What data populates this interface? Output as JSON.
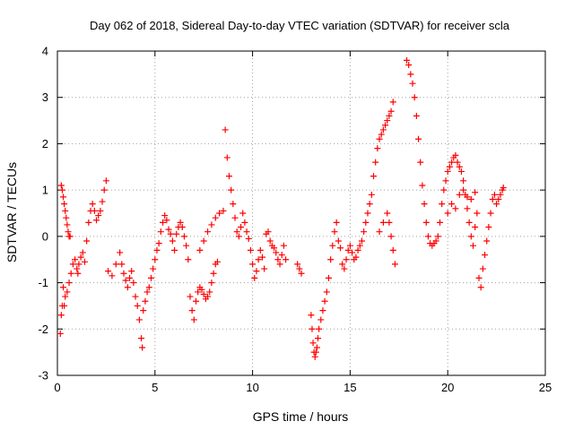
{
  "chart_data": {
    "type": "scatter",
    "title": "Day 062 of 2018, Sidereal Day-to-day VTEC variation (SDTVAR) for receiver scla",
    "xlabel": "GPS time / hours",
    "ylabel": "SDTVAR / TECUs",
    "xlim": [
      0,
      25
    ],
    "ylim": [
      -3,
      4
    ],
    "xticks": [
      "0",
      "5",
      "10",
      "15",
      "20",
      "25"
    ],
    "yticks": [
      "-3",
      "-2",
      "-1",
      "0",
      "1",
      "2",
      "3",
      "4"
    ],
    "grid": true,
    "marker": "+",
    "color": "#ff0000",
    "series": [
      {
        "name": "SDTVAR",
        "points": [
          [
            0.15,
            -2.1
          ],
          [
            0.2,
            -1.7
          ],
          [
            0.25,
            -1.5
          ],
          [
            0.3,
            -1.1
          ],
          [
            0.2,
            1.1
          ],
          [
            0.25,
            1.0
          ],
          [
            0.3,
            0.85
          ],
          [
            0.35,
            0.7
          ],
          [
            0.4,
            0.55
          ],
          [
            0.45,
            0.4
          ],
          [
            0.5,
            0.25
          ],
          [
            0.55,
            0.1
          ],
          [
            0.6,
            0.0
          ],
          [
            0.65,
            0.0
          ],
          [
            0.35,
            -1.5
          ],
          [
            0.4,
            -1.3
          ],
          [
            0.5,
            -1.2
          ],
          [
            0.6,
            -1.0
          ],
          [
            0.7,
            -0.8
          ],
          [
            0.8,
            -0.6
          ],
          [
            0.9,
            -0.5
          ],
          [
            1.0,
            -0.7
          ],
          [
            1.05,
            -0.8
          ],
          [
            1.1,
            -0.6
          ],
          [
            1.2,
            -0.45
          ],
          [
            1.3,
            -0.35
          ],
          [
            1.4,
            -0.55
          ],
          [
            1.5,
            -0.1
          ],
          [
            1.6,
            0.3
          ],
          [
            1.7,
            0.55
          ],
          [
            1.8,
            0.7
          ],
          [
            1.9,
            0.55
          ],
          [
            2.0,
            0.35
          ],
          [
            2.1,
            0.45
          ],
          [
            2.2,
            0.55
          ],
          [
            2.3,
            0.75
          ],
          [
            2.4,
            1.0
          ],
          [
            2.5,
            1.2
          ],
          [
            2.6,
            -0.75
          ],
          [
            2.8,
            -0.85
          ],
          [
            3.0,
            -0.6
          ],
          [
            3.2,
            -0.35
          ],
          [
            3.3,
            -0.6
          ],
          [
            3.4,
            -0.8
          ],
          [
            3.5,
            -0.95
          ],
          [
            3.6,
            -1.1
          ],
          [
            3.7,
            -0.9
          ],
          [
            3.8,
            -0.75
          ],
          [
            3.9,
            -1.0
          ],
          [
            4.0,
            -1.3
          ],
          [
            4.1,
            -1.5
          ],
          [
            4.2,
            -1.8
          ],
          [
            4.3,
            -2.2
          ],
          [
            4.35,
            -2.4
          ],
          [
            4.4,
            -1.6
          ],
          [
            4.5,
            -1.4
          ],
          [
            4.6,
            -1.2
          ],
          [
            4.7,
            -1.1
          ],
          [
            4.8,
            -0.9
          ],
          [
            4.9,
            -0.7
          ],
          [
            5.0,
            -0.5
          ],
          [
            5.1,
            -0.3
          ],
          [
            5.2,
            -0.15
          ],
          [
            5.3,
            0.1
          ],
          [
            5.4,
            0.3
          ],
          [
            5.5,
            0.45
          ],
          [
            5.6,
            0.35
          ],
          [
            5.7,
            0.15
          ],
          [
            5.8,
            0.05
          ],
          [
            5.9,
            -0.1
          ],
          [
            6.0,
            -0.3
          ],
          [
            6.1,
            0.05
          ],
          [
            6.2,
            0.2
          ],
          [
            6.3,
            0.3
          ],
          [
            6.4,
            0.2
          ],
          [
            6.5,
            0.0
          ],
          [
            6.6,
            -0.2
          ],
          [
            6.7,
            -0.5
          ],
          [
            6.8,
            -1.3
          ],
          [
            6.9,
            -1.6
          ],
          [
            7.0,
            -1.8
          ],
          [
            7.1,
            -1.4
          ],
          [
            7.2,
            -1.2
          ],
          [
            7.3,
            -1.1
          ],
          [
            7.4,
            -1.15
          ],
          [
            7.5,
            -1.25
          ],
          [
            7.6,
            -1.35
          ],
          [
            7.7,
            -1.3
          ],
          [
            7.8,
            -1.2
          ],
          [
            7.9,
            -1.0
          ],
          [
            8.0,
            -0.8
          ],
          [
            8.1,
            -0.6
          ],
          [
            8.2,
            -0.55
          ],
          [
            7.3,
            -0.3
          ],
          [
            7.5,
            -0.1
          ],
          [
            7.7,
            0.1
          ],
          [
            7.9,
            0.25
          ],
          [
            8.1,
            0.4
          ],
          [
            8.3,
            0.5
          ],
          [
            8.5,
            0.55
          ],
          [
            8.6,
            2.3
          ],
          [
            8.7,
            1.7
          ],
          [
            8.8,
            1.3
          ],
          [
            8.9,
            1.0
          ],
          [
            9.0,
            0.7
          ],
          [
            9.1,
            0.4
          ],
          [
            9.2,
            0.1
          ],
          [
            9.3,
            0.0
          ],
          [
            9.4,
            0.2
          ],
          [
            9.5,
            0.5
          ],
          [
            9.6,
            0.3
          ],
          [
            9.7,
            0.1
          ],
          [
            9.8,
            -0.05
          ],
          [
            9.9,
            -0.3
          ],
          [
            10.0,
            -0.6
          ],
          [
            10.1,
            -0.9
          ],
          [
            10.2,
            -0.75
          ],
          [
            10.3,
            -0.5
          ],
          [
            10.4,
            -0.3
          ],
          [
            10.5,
            -0.45
          ],
          [
            10.6,
            -0.7
          ],
          [
            10.7,
            0.05
          ],
          [
            10.8,
            0.1
          ],
          [
            10.9,
            -0.1
          ],
          [
            11.0,
            -0.2
          ],
          [
            11.1,
            -0.25
          ],
          [
            11.2,
            -0.35
          ],
          [
            11.3,
            -0.5
          ],
          [
            11.4,
            -0.6
          ],
          [
            11.5,
            -0.4
          ],
          [
            11.6,
            -0.2
          ],
          [
            11.7,
            -0.5
          ],
          [
            12.3,
            -0.6
          ],
          [
            12.4,
            -0.7
          ],
          [
            12.5,
            -0.8
          ],
          [
            13.0,
            -1.7
          ],
          [
            13.05,
            -2.0
          ],
          [
            13.1,
            -2.3
          ],
          [
            13.15,
            -2.5
          ],
          [
            13.2,
            -2.6
          ],
          [
            13.25,
            -2.5
          ],
          [
            13.3,
            -2.4
          ],
          [
            13.35,
            -2.2
          ],
          [
            13.4,
            -2.0
          ],
          [
            13.5,
            -1.8
          ],
          [
            13.6,
            -1.6
          ],
          [
            13.7,
            -1.4
          ],
          [
            13.8,
            -1.2
          ],
          [
            13.9,
            -0.9
          ],
          [
            14.0,
            -0.5
          ],
          [
            14.1,
            -0.2
          ],
          [
            14.2,
            0.1
          ],
          [
            14.3,
            0.3
          ],
          [
            14.4,
            -0.1
          ],
          [
            14.5,
            -0.25
          ],
          [
            14.6,
            -0.6
          ],
          [
            14.7,
            -0.7
          ],
          [
            14.8,
            -0.5
          ],
          [
            14.9,
            -0.3
          ],
          [
            15.0,
            -0.2
          ],
          [
            15.1,
            -0.35
          ],
          [
            15.2,
            -0.5
          ],
          [
            15.3,
            -0.45
          ],
          [
            15.4,
            -0.3
          ],
          [
            15.5,
            -0.2
          ],
          [
            15.6,
            -0.1
          ],
          [
            15.7,
            0.1
          ],
          [
            15.8,
            0.3
          ],
          [
            15.9,
            0.5
          ],
          [
            16.0,
            0.7
          ],
          [
            16.1,
            0.9
          ],
          [
            16.2,
            1.3
          ],
          [
            16.3,
            1.6
          ],
          [
            16.4,
            1.9
          ],
          [
            16.5,
            2.1
          ],
          [
            16.6,
            2.2
          ],
          [
            16.7,
            2.3
          ],
          [
            16.8,
            2.4
          ],
          [
            16.9,
            2.5
          ],
          [
            17.0,
            2.6
          ],
          [
            17.1,
            2.7
          ],
          [
            17.2,
            2.9
          ],
          [
            16.5,
            0.1
          ],
          [
            16.7,
            0.3
          ],
          [
            16.9,
            0.5
          ],
          [
            17.0,
            0.3
          ],
          [
            17.1,
            0.0
          ],
          [
            17.2,
            -0.3
          ],
          [
            17.3,
            -0.6
          ],
          [
            17.9,
            3.8
          ],
          [
            18.0,
            3.7
          ],
          [
            18.1,
            3.5
          ],
          [
            18.2,
            3.3
          ],
          [
            18.3,
            3.0
          ],
          [
            18.4,
            2.6
          ],
          [
            18.5,
            2.1
          ],
          [
            18.6,
            1.6
          ],
          [
            18.7,
            1.1
          ],
          [
            18.8,
            0.7
          ],
          [
            18.9,
            0.3
          ],
          [
            19.0,
            0.0
          ],
          [
            19.1,
            -0.15
          ],
          [
            19.2,
            -0.2
          ],
          [
            19.3,
            -0.15
          ],
          [
            19.4,
            -0.1
          ],
          [
            19.5,
            0.0
          ],
          [
            19.6,
            0.3
          ],
          [
            19.7,
            0.7
          ],
          [
            19.8,
            1.0
          ],
          [
            19.9,
            1.2
          ],
          [
            20.0,
            1.4
          ],
          [
            20.1,
            1.5
          ],
          [
            20.2,
            1.6
          ],
          [
            20.3,
            1.7
          ],
          [
            20.4,
            1.75
          ],
          [
            20.5,
            1.6
          ],
          [
            20.6,
            1.5
          ],
          [
            20.7,
            1.4
          ],
          [
            20.8,
            1.2
          ],
          [
            20.9,
            0.9
          ],
          [
            21.0,
            0.6
          ],
          [
            21.1,
            0.3
          ],
          [
            21.2,
            0.0
          ],
          [
            21.3,
            -0.2
          ],
          [
            21.4,
            0.2
          ],
          [
            21.5,
            0.5
          ],
          [
            21.6,
            -0.9
          ],
          [
            21.7,
            -1.1
          ],
          [
            21.8,
            -0.7
          ],
          [
            21.9,
            -0.4
          ],
          [
            22.0,
            -0.1
          ],
          [
            22.1,
            0.2
          ],
          [
            22.2,
            0.5
          ],
          [
            22.3,
            0.8
          ],
          [
            22.4,
            0.9
          ],
          [
            22.5,
            0.7
          ],
          [
            22.6,
            0.8
          ],
          [
            22.7,
            0.9
          ],
          [
            22.8,
            1.0
          ],
          [
            22.85,
            1.05
          ],
          [
            20.6,
            0.9
          ],
          [
            20.8,
            1.0
          ],
          [
            21.0,
            0.85
          ],
          [
            21.2,
            0.8
          ],
          [
            21.4,
            0.95
          ],
          [
            20.0,
            0.5
          ],
          [
            20.2,
            0.7
          ],
          [
            20.4,
            0.6
          ]
        ]
      }
    ]
  }
}
